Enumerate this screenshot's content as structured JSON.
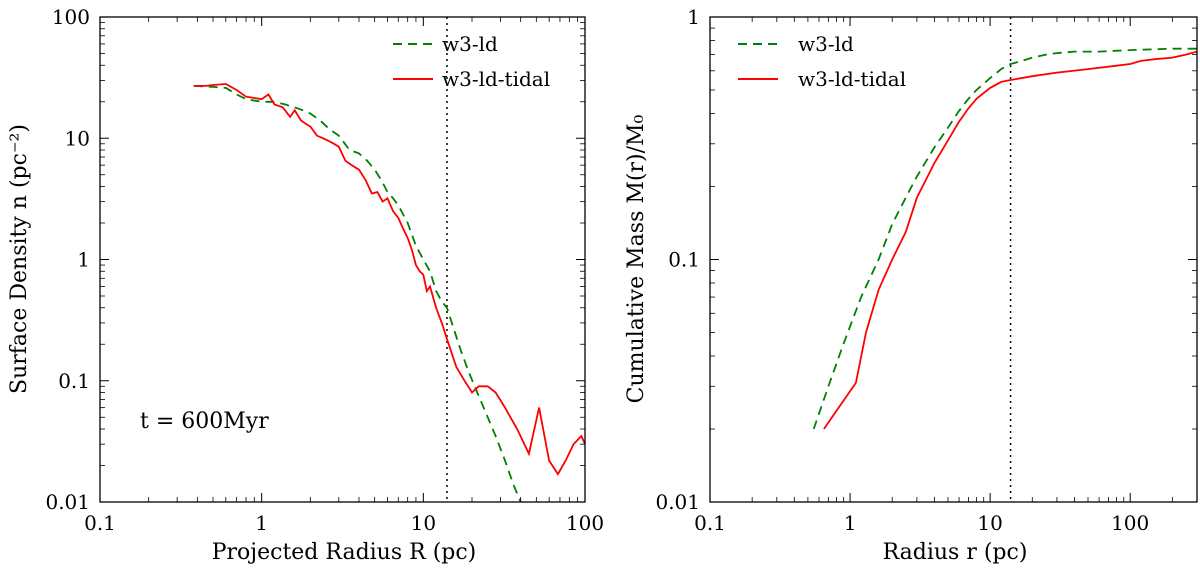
{
  "chart_data": [
    {
      "type": "line",
      "xscale": "log",
      "yscale": "log",
      "xlim": [
        0.1,
        100
      ],
      "ylim": [
        0.01,
        100
      ],
      "xticks": [
        0.1,
        1,
        10,
        100
      ],
      "xtick_labels": [
        "0.1",
        "1",
        "10",
        "100"
      ],
      "yticks": [
        0.01,
        0.1,
        1,
        10,
        100
      ],
      "ytick_labels": [
        "0.01",
        "0.1",
        "1",
        "10",
        "100"
      ],
      "xlabel": "Projected Radius R (pc)",
      "ylabel": "Surface Density n (pc⁻²)",
      "vline_x": 14,
      "annotation": "t = 600Myr",
      "legend_position": "top-right",
      "series": [
        {
          "name": "w3-ld",
          "color": "#008000",
          "style": "dashed",
          "x": [
            0.38,
            0.5,
            0.6,
            0.7,
            0.8,
            1.0,
            1.2,
            1.4,
            1.6,
            1.8,
            2.0,
            2.3,
            2.6,
            3.0,
            3.5,
            4.0,
            4.5,
            5.0,
            5.5,
            6.0,
            6.5,
            7.0,
            8.0,
            9.0,
            10.0,
            11.0,
            12.0,
            13.0,
            14.0,
            15.0,
            17.0,
            19.0,
            22.0,
            25.0,
            28.0,
            32.0,
            36.0,
            40.0
          ],
          "y": [
            27,
            26.5,
            26,
            23,
            21,
            20,
            20,
            19,
            18,
            17,
            16,
            14,
            12,
            10.5,
            8,
            7.5,
            6.5,
            5.5,
            4.5,
            3.6,
            3.2,
            2.8,
            2.0,
            1.3,
            1.0,
            0.8,
            0.55,
            0.45,
            0.4,
            0.3,
            0.18,
            0.12,
            0.075,
            0.05,
            0.035,
            0.022,
            0.014,
            0.01
          ]
        },
        {
          "name": "w3-ld-tidal",
          "color": "#ff0000",
          "style": "solid",
          "x": [
            0.38,
            0.45,
            0.5,
            0.6,
            0.7,
            0.8,
            1.0,
            1.1,
            1.2,
            1.35,
            1.5,
            1.6,
            1.75,
            1.9,
            2.0,
            2.2,
            2.4,
            2.6,
            2.8,
            3.0,
            3.3,
            3.6,
            4.0,
            4.4,
            4.8,
            5.2,
            5.6,
            6.0,
            6.5,
            7.0,
            7.5,
            8.0,
            8.5,
            9.0,
            9.5,
            10.0,
            10.5,
            11.0,
            12.0,
            13.0,
            14.0,
            16.0,
            18.0,
            20.0,
            22.0,
            25.0,
            28.0,
            32.0,
            38.0,
            45.0,
            52.0,
            60.0,
            68.0,
            76.0,
            85.0,
            95.0,
            100.0
          ],
          "y": [
            27,
            27,
            27.5,
            28,
            25,
            22,
            21,
            23,
            19,
            18,
            15,
            17,
            14,
            13,
            12.5,
            10.5,
            10,
            9.5,
            9,
            8.5,
            6.5,
            6,
            5.5,
            4.5,
            3.5,
            3.6,
            3.0,
            3.2,
            2.5,
            2.2,
            1.8,
            1.5,
            1.2,
            0.9,
            0.8,
            0.75,
            0.55,
            0.6,
            0.4,
            0.3,
            0.22,
            0.13,
            0.1,
            0.08,
            0.09,
            0.09,
            0.08,
            0.06,
            0.04,
            0.025,
            0.06,
            0.022,
            0.017,
            0.022,
            0.03,
            0.035,
            0.03
          ]
        }
      ]
    },
    {
      "type": "line",
      "xscale": "log",
      "yscale": "log",
      "xlim": [
        0.1,
        300
      ],
      "ylim": [
        0.01,
        1
      ],
      "xticks": [
        0.1,
        1,
        10,
        100
      ],
      "xtick_labels": [
        "0.1",
        "1",
        "10",
        "100"
      ],
      "yticks": [
        0.01,
        0.1,
        1
      ],
      "ytick_labels": [
        "0.01",
        "0.1",
        "1"
      ],
      "xlabel": "Radius r (pc)",
      "ylabel": "Cumulative Mass M(r)/M₀",
      "vline_x": 14,
      "legend_position": "top-left",
      "series": [
        {
          "name": "w3-ld",
          "color": "#008000",
          "style": "dashed",
          "x": [
            0.55,
            0.7,
            0.9,
            1.2,
            1.6,
            2.0,
            2.5,
            3.0,
            4.0,
            5.0,
            6.0,
            7.0,
            8.0,
            10.0,
            12.0,
            14.0,
            17.0,
            20.0,
            25.0,
            30.0,
            40.0,
            60.0,
            100.0,
            200.0,
            300.0
          ],
          "y": [
            0.02,
            0.03,
            0.045,
            0.07,
            0.1,
            0.14,
            0.18,
            0.22,
            0.29,
            0.35,
            0.41,
            0.46,
            0.5,
            0.56,
            0.61,
            0.64,
            0.66,
            0.68,
            0.7,
            0.71,
            0.72,
            0.72,
            0.73,
            0.74,
            0.74
          ]
        },
        {
          "name": "w3-ld-tidal",
          "color": "#ff0000",
          "style": "solid",
          "x": [
            0.65,
            1.1,
            1.3,
            1.6,
            2.0,
            2.5,
            3.0,
            4.0,
            5.0,
            6.0,
            7.0,
            8.0,
            10.0,
            12.0,
            14.0,
            20.0,
            30.0,
            50.0,
            80.0,
            100.0,
            120.0,
            150.0,
            200.0,
            250.0,
            300.0
          ],
          "y": [
            0.02,
            0.031,
            0.05,
            0.075,
            0.1,
            0.13,
            0.18,
            0.25,
            0.31,
            0.37,
            0.42,
            0.46,
            0.51,
            0.54,
            0.55,
            0.57,
            0.59,
            0.61,
            0.63,
            0.64,
            0.66,
            0.67,
            0.68,
            0.7,
            0.72
          ]
        }
      ]
    }
  ]
}
